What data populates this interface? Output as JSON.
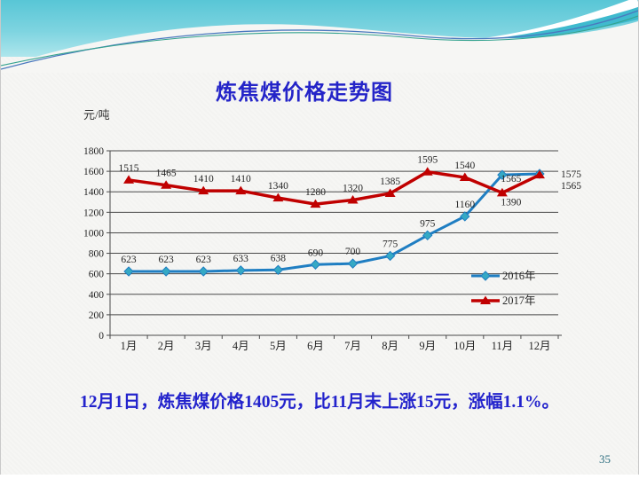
{
  "slide": {
    "title": "炼焦煤价格走势图",
    "caption": "12月1日，炼焦煤价格1405元，比11月末上涨15元，涨幅1.1%。",
    "page_number": "35"
  },
  "chart_data": {
    "type": "line",
    "title": "炼焦煤价格走势图",
    "ylabel": "元/吨",
    "categories": [
      "1月",
      "2月",
      "3月",
      "4月",
      "5月",
      "6月",
      "7月",
      "8月",
      "9月",
      "10月",
      "11月",
      "12月"
    ],
    "series": [
      {
        "name": "2016年",
        "marker": "diamond",
        "color": "#1f7ec2",
        "marker_color": "#35a9c4",
        "values": [
          623,
          623,
          623,
          633,
          638,
          690,
          700,
          775,
          975,
          1160,
          1565,
          1575
        ]
      },
      {
        "name": "2017年",
        "marker": "triangle",
        "color": "#c00000",
        "marker_color": "#c00000",
        "values": [
          1515,
          1465,
          1410,
          1410,
          1340,
          1280,
          1320,
          1385,
          1595,
          1540,
          1390,
          1565
        ]
      }
    ],
    "ylim": [
      0,
      1800
    ],
    "ytick_step": 200,
    "grid": true,
    "legend_position": "inside-right",
    "data_labels": true
  },
  "colors": {
    "title_text": "#2424c8",
    "caption_text": "#2323cc",
    "axis_and_grid": "#4a4a4a",
    "chart_text": "#262626",
    "header_teal": "#58c6d6",
    "page_number": "#2e6f80"
  }
}
